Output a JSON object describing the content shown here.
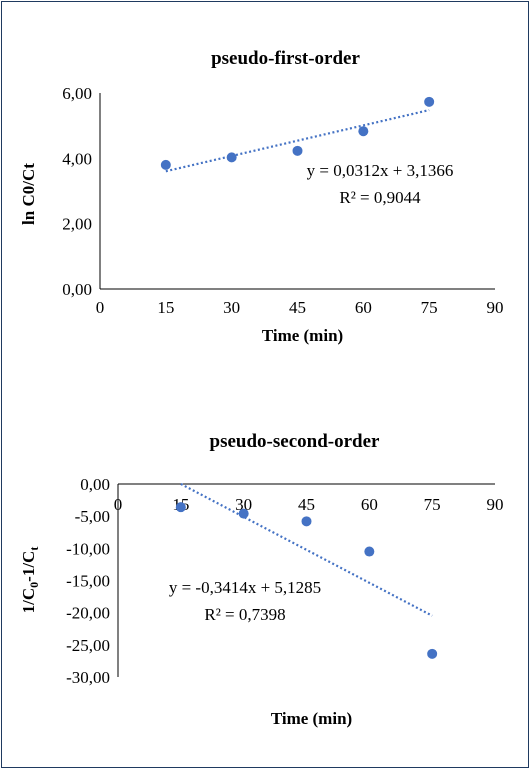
{
  "chart_data": [
    {
      "type": "scatter",
      "title": "pseudo-first-order",
      "xlabel": "Time (min)",
      "ylabel": "ln C0/Ct",
      "xlim": [
        0,
        90
      ],
      "ylim": [
        0,
        6
      ],
      "x_ticks": [
        "0",
        "15",
        "30",
        "45",
        "60",
        "75",
        "90"
      ],
      "y_ticks": [
        "0,00",
        "2,00",
        "4,00",
        "6,00"
      ],
      "x_axis_position": "bottom",
      "grid": false,
      "series": [
        {
          "x": [
            15,
            30,
            45,
            60,
            75
          ],
          "y": [
            3.8,
            4.03,
            4.23,
            4.83,
            5.73
          ]
        }
      ],
      "trendline": {
        "type": "linear",
        "slope": 0.0312,
        "intercept": 3.1366,
        "x_range": [
          15,
          75
        ]
      },
      "annotations": [
        "y = 0,0312x + 3,1366",
        "R² = 0,9044"
      ],
      "colors": {
        "points": "#4472c4",
        "trendline": "#4472c4"
      }
    },
    {
      "type": "scatter",
      "title": "pseudo-second-order",
      "xlabel": "Time (min)",
      "ylabel_main": "1/C",
      "ylabel_sub1": "0",
      "ylabel_mid": "-1/C",
      "ylabel_sub2": "t",
      "xlim": [
        0,
        90
      ],
      "ylim": [
        -30,
        0
      ],
      "x_ticks": [
        "0",
        "15",
        "30",
        "45",
        "60",
        "75",
        "90"
      ],
      "y_ticks": [
        "0,00",
        "-5,00",
        "-10,00",
        "-15,00",
        "-20,00",
        "-25,00",
        "-30,00"
      ],
      "x_axis_position": "top",
      "grid": false,
      "series": [
        {
          "x": [
            15,
            30,
            45,
            60,
            75
          ],
          "y": [
            -3.6,
            -4.6,
            -5.8,
            -10.5,
            -26.4
          ]
        }
      ],
      "trendline": {
        "type": "linear",
        "slope": -0.3414,
        "intercept": 5.1285,
        "x_range": [
          15,
          75
        ]
      },
      "annotations": [
        "y = -0,3414x + 5,1285",
        "R² = 0,7398"
      ],
      "colors": {
        "points": "#4472c4",
        "trendline": "#4472c4"
      }
    }
  ]
}
